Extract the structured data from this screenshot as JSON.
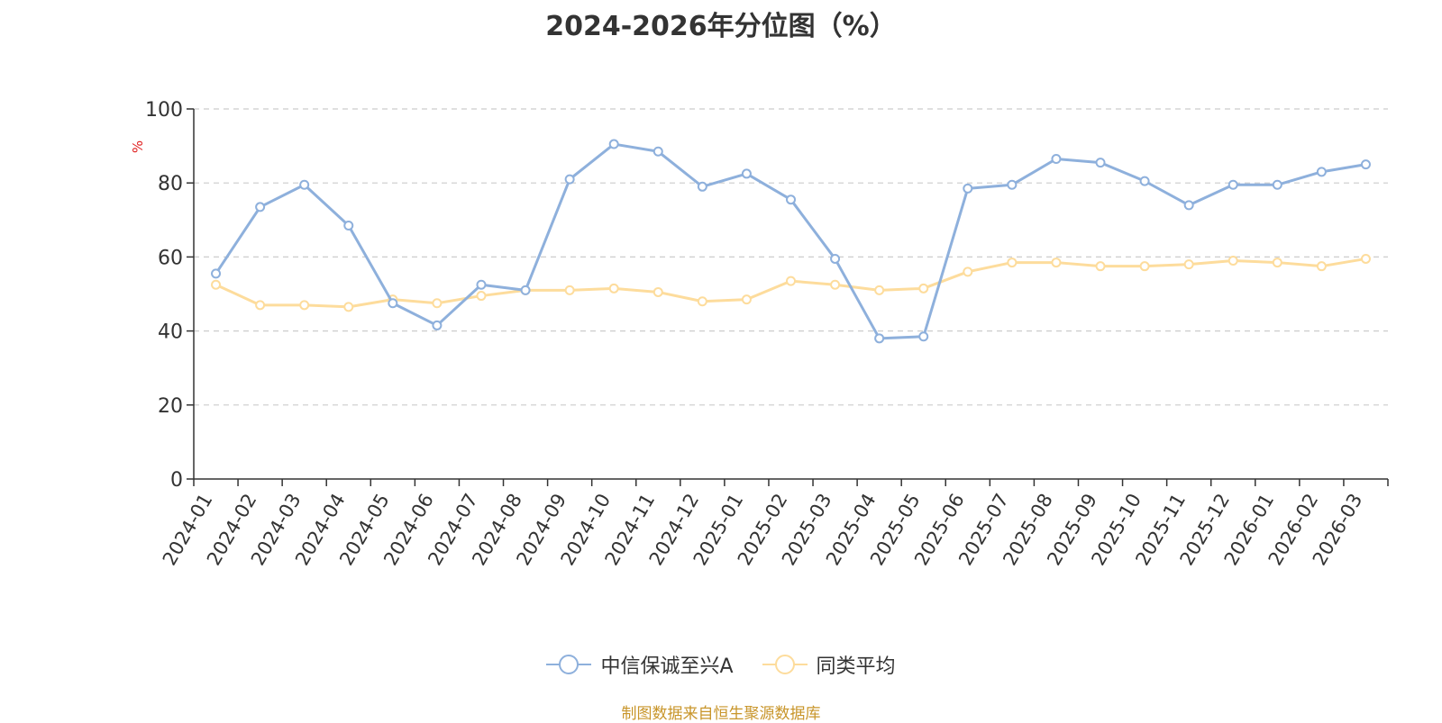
{
  "title": "2024-2026年分位图（%）",
  "source": "制图数据来自恒生聚源数据库",
  "colors": {
    "series1": "#8eb0dc",
    "series2": "#fddc9c",
    "unit": "#e02020",
    "source": "#c8952a",
    "axis": "#333333",
    "grid": "#cccccc"
  },
  "chart_data": {
    "type": "line",
    "ylabel": "%",
    "ylim": [
      0,
      100
    ],
    "yticks": [
      "0",
      "20",
      "40",
      "60",
      "80",
      "100"
    ],
    "grid": true,
    "legend_position": "bottom-center",
    "categories": [
      "2024-01",
      "2024-02",
      "2024-03",
      "2024-04",
      "2024-05",
      "2024-06",
      "2024-07",
      "2024-08",
      "2024-09",
      "2024-10",
      "2024-11",
      "2024-12",
      "2025-01",
      "2025-02",
      "2025-03",
      "2025-04",
      "2025-05",
      "2025-06",
      "2025-07",
      "2025-08",
      "2025-09",
      "2025-10",
      "2025-11",
      "2025-12",
      "2026-01",
      "2026-02",
      "2026-03"
    ],
    "series": [
      {
        "name": "中信保诚至兴A",
        "values": [
          55.5,
          73.5,
          79.5,
          68.5,
          47.5,
          41.5,
          52.5,
          51.0,
          81.0,
          90.5,
          88.5,
          79.0,
          82.5,
          75.5,
          59.5,
          38.0,
          38.5,
          78.5,
          79.5,
          86.5,
          85.5,
          80.5,
          74.0,
          79.5,
          79.5,
          83.0,
          85.0
        ]
      },
      {
        "name": "同类平均",
        "values": [
          52.5,
          47.0,
          47.0,
          46.5,
          48.5,
          47.5,
          49.5,
          51.0,
          51.0,
          51.5,
          50.5,
          48.0,
          48.5,
          53.5,
          52.5,
          51.0,
          51.5,
          56.0,
          58.5,
          58.5,
          57.5,
          57.5,
          58.0,
          59.0,
          58.5,
          57.5,
          59.5
        ]
      }
    ]
  }
}
